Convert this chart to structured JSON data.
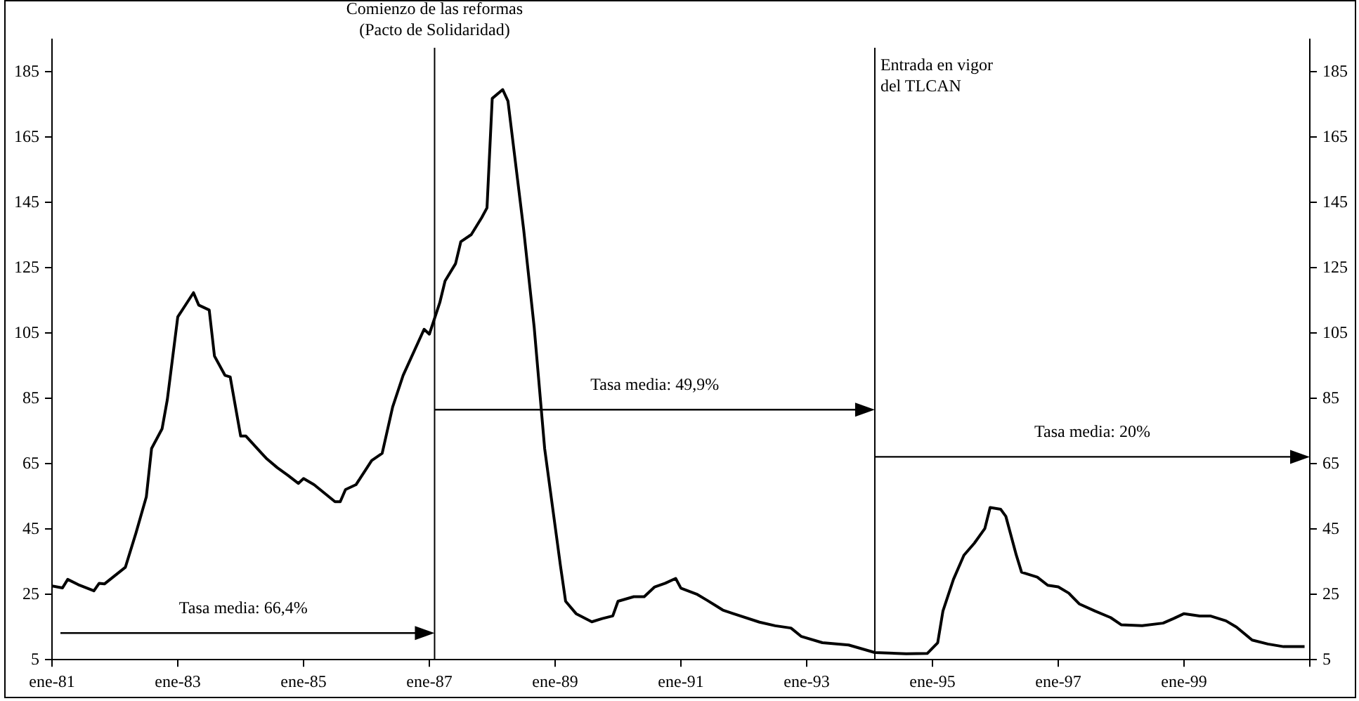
{
  "chart_data": {
    "type": "line",
    "x": [
      "1981-01",
      "1981-03",
      "1981-04",
      "1981-06",
      "1981-09",
      "1981-10",
      "1981-11",
      "1982-03",
      "1982-05",
      "1982-07",
      "1982-08",
      "1982-10",
      "1982-11",
      "1983-01",
      "1983-04",
      "1983-05",
      "1983-07",
      "1983-08",
      "1983-10",
      "1983-11",
      "1984-01",
      "1984-02",
      "1984-05",
      "1984-06",
      "1984-08",
      "1984-10",
      "1984-12",
      "1985-01",
      "1985-03",
      "1985-07",
      "1985-08",
      "1985-09",
      "1985-11",
      "1986-02",
      "1986-04",
      "1986-06",
      "1986-08",
      "1986-12",
      "1987-01",
      "1987-03",
      "1987-04",
      "1987-06",
      "1987-07",
      "1987-09",
      "1987-11",
      "1987-12",
      "1988-01",
      "1988-03",
      "1988-04",
      "1988-07",
      "1988-09",
      "1988-11",
      "1989-02",
      "1989-03",
      "1989-05",
      "1989-08",
      "1989-10",
      "1989-12",
      "1990-01",
      "1990-04",
      "1990-06",
      "1990-08",
      "1990-10",
      "1990-12",
      "1991-01",
      "1991-04",
      "1991-06",
      "1991-09",
      "1991-11",
      "1992-04",
      "1992-07",
      "1992-10",
      "1992-12",
      "1993-04",
      "1993-09",
      "1994-02",
      "1994-08",
      "1994-12",
      "1995-02",
      "1995-03",
      "1995-05",
      "1995-07",
      "1995-09",
      "1995-11",
      "1995-12",
      "1996-02",
      "1996-03",
      "1996-05",
      "1996-06",
      "1996-09",
      "1996-11",
      "1997-01",
      "1997-03",
      "1997-05",
      "1997-08",
      "1997-11",
      "1998-01",
      "1998-05",
      "1998-09",
      "1998-11",
      "1999-01",
      "1999-04",
      "1999-06",
      "1999-09",
      "1999-11",
      "2000-02",
      "2000-05",
      "2000-08",
      "2000-12"
    ],
    "series": [
      {
        "color": "#000000",
        "values": [
          27.6,
          27,
          29.6,
          28,
          26.1,
          28.4,
          28.2,
          33.3,
          43.7,
          54.9,
          69.7,
          75.7,
          84.6,
          110,
          117.4,
          113.6,
          112.1,
          98,
          92.1,
          91.6,
          73.5,
          73.5,
          68.2,
          66.5,
          63.8,
          61.5,
          59,
          60.5,
          58.6,
          53.4,
          53.4,
          57.1,
          58.6,
          66,
          68.2,
          82.4,
          92.1,
          106.2,
          104.7,
          114.4,
          121,
          126.3,
          133,
          135.2,
          140.4,
          143.4,
          176.9,
          179.6,
          176.1,
          136.7,
          106.9,
          69.7,
          34,
          22.9,
          19.1,
          16.6,
          17.6,
          18.4,
          22.9,
          24.3,
          24.3,
          27.3,
          28.4,
          29.9,
          26.9,
          25.1,
          23.2,
          20.2,
          19.1,
          16.5,
          15.4,
          14.7,
          12.1,
          10.2,
          9.5,
          7.2,
          6.8,
          6.9,
          10.2,
          19.9,
          29.6,
          37,
          40.7,
          45.2,
          51.6,
          51.1,
          48.9,
          37,
          31.8,
          30.3,
          27.8,
          27.3,
          25.4,
          22.1,
          19.9,
          17.9,
          15.7,
          15.4,
          16.2,
          17.6,
          19.1,
          18.4,
          18.4,
          16.9,
          15,
          11,
          9.8,
          9,
          9
        ]
      }
    ],
    "xlim": [
      "1981-01",
      "2001-01"
    ],
    "xticks": [
      {
        "value": "1981-01",
        "label": "ene-81"
      },
      {
        "value": "1983-01",
        "label": "ene-83"
      },
      {
        "value": "1985-01",
        "label": "ene-85"
      },
      {
        "value": "1987-01",
        "label": "ene-87"
      },
      {
        "value": "1989-01",
        "label": "ene-89"
      },
      {
        "value": "1991-01",
        "label": "ene-91"
      },
      {
        "value": "1993-01",
        "label": "ene-93"
      },
      {
        "value": "1995-01",
        "label": "ene-95"
      },
      {
        "value": "1997-01",
        "label": "ene-97"
      },
      {
        "value": "1999-01",
        "label": "ene-99"
      },
      {
        "value": "2001-01",
        "label": null
      }
    ],
    "ylim": [
      5,
      195
    ],
    "yticks": [
      5,
      25,
      45,
      65,
      85,
      105,
      125,
      145,
      165,
      185
    ],
    "y2lim": [
      5,
      195
    ],
    "y2ticks": [
      5,
      25,
      45,
      65,
      85,
      105,
      125,
      145,
      165,
      185
    ],
    "ref_lines": [
      {
        "axis": "x",
        "value": "1987-02",
        "label": "Comienzo de las reformas\n(Pacto de Solidaridad)"
      },
      {
        "axis": "x",
        "value": "1994-02",
        "label": "Entrada en vigor\ndel TLCAN"
      }
    ],
    "annotations": [
      "Tasa media: 66,4%",
      "Tasa media: 49,9%",
      "Tasa media: 20%"
    ],
    "grid": false,
    "legend": false,
    "marker": "none",
    "line_style": "solid"
  }
}
